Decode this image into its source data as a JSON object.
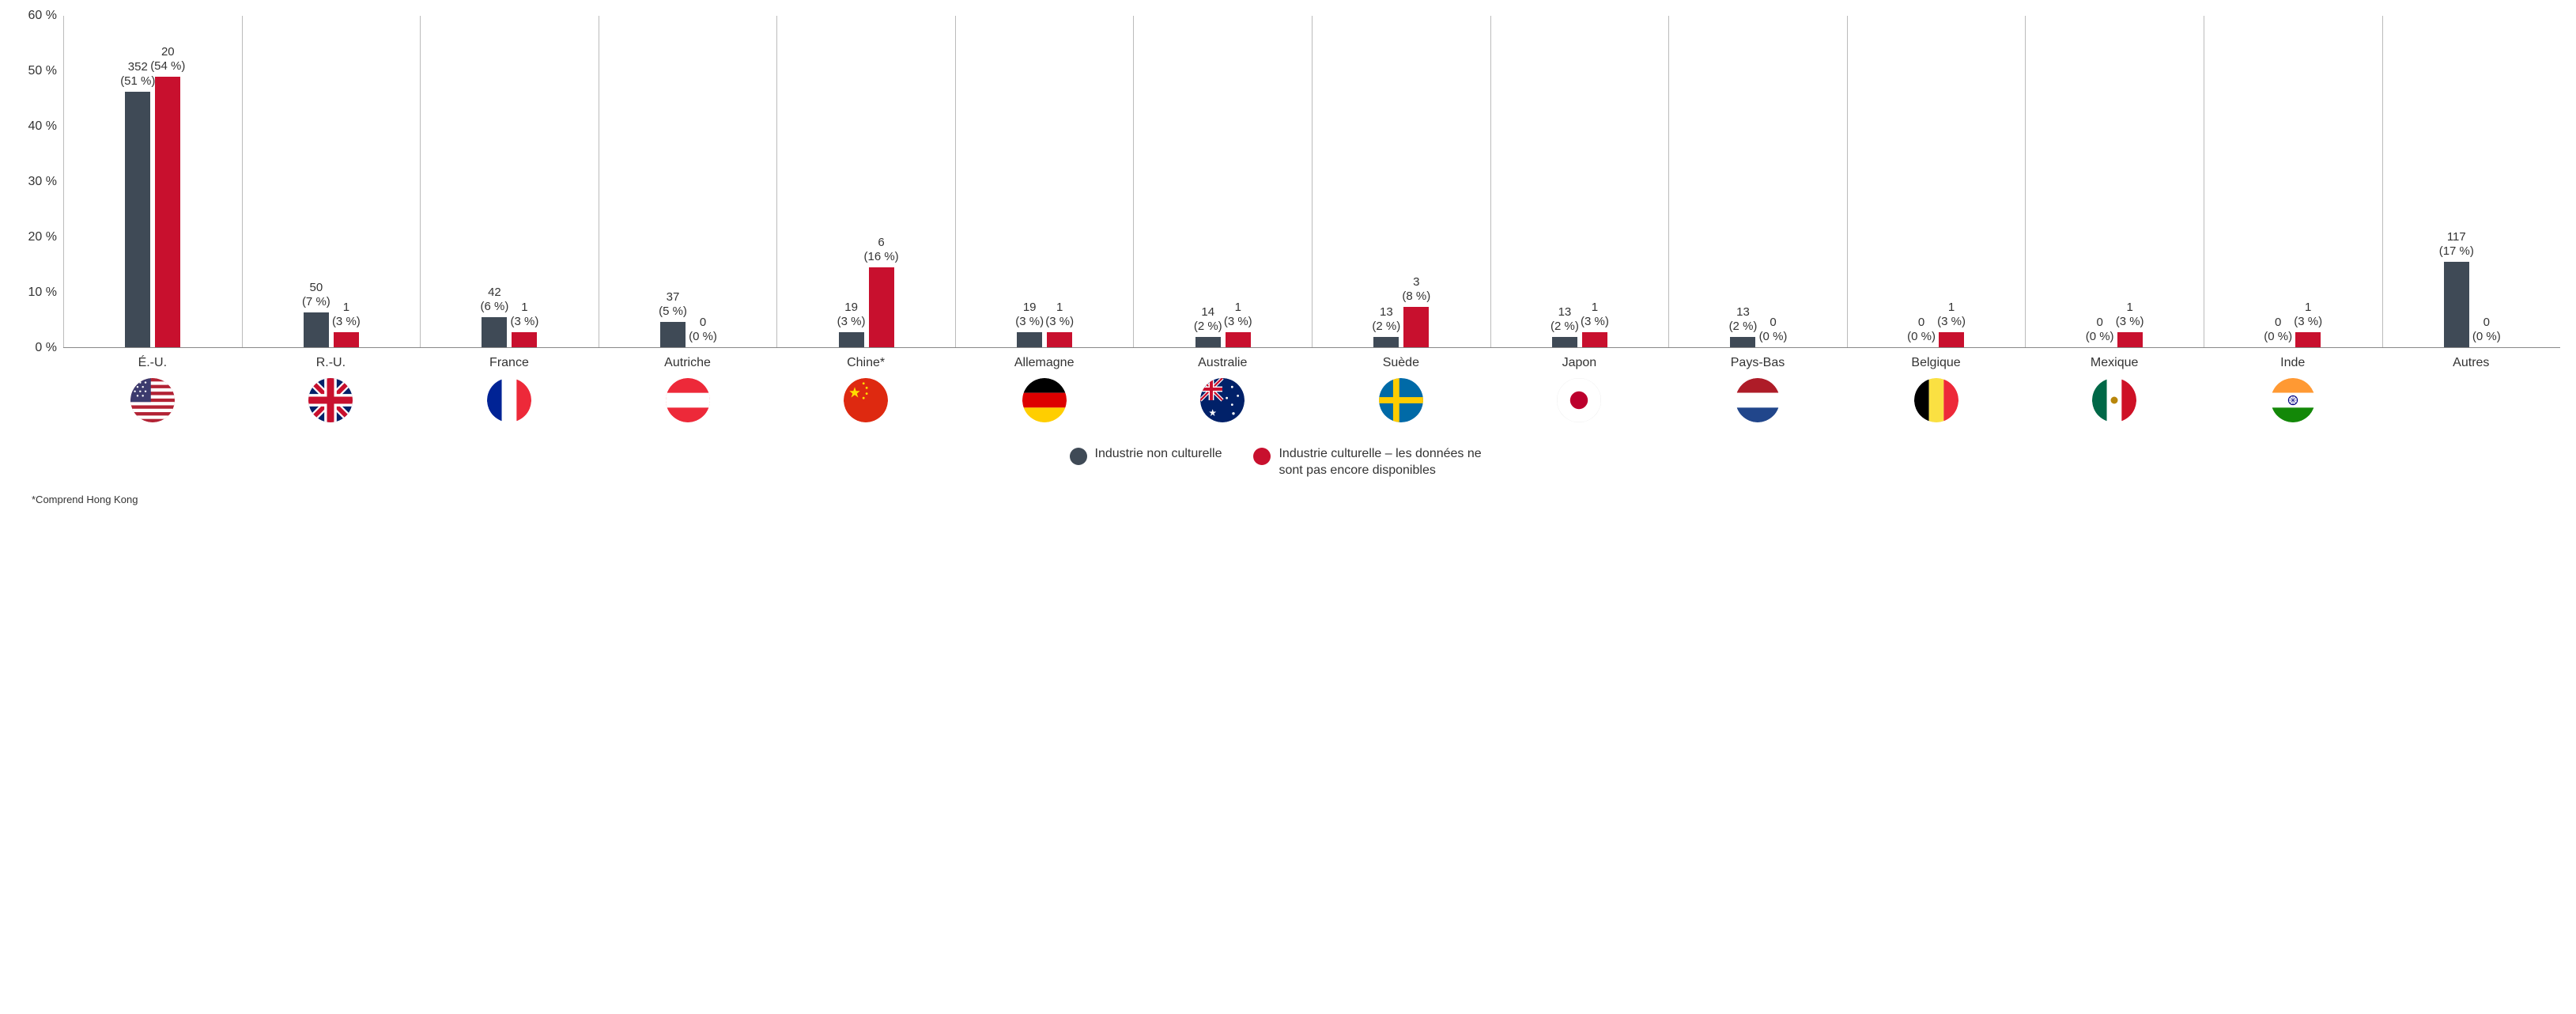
{
  "chart": {
    "type": "bar",
    "y_axis": {
      "min": 0,
      "max": 60,
      "step": 10,
      "unit": " %",
      "ticks": [
        0,
        10,
        20,
        30,
        40,
        50,
        60
      ]
    },
    "series": [
      {
        "key": "noncultural",
        "color": "#3f4a56"
      },
      {
        "key": "cultural",
        "color": "#c8102e"
      }
    ],
    "categories": [
      {
        "label": "É.-U.",
        "flag": "us",
        "noncultural": {
          "count": 352,
          "pct": 51
        },
        "cultural": {
          "count": 20,
          "pct": 54
        }
      },
      {
        "label": "R.-U.",
        "flag": "uk",
        "noncultural": {
          "count": 50,
          "pct": 7
        },
        "cultural": {
          "count": 1,
          "pct": 3
        }
      },
      {
        "label": "France",
        "flag": "fr",
        "noncultural": {
          "count": 42,
          "pct": 6
        },
        "cultural": {
          "count": 1,
          "pct": 3
        }
      },
      {
        "label": "Autriche",
        "flag": "at",
        "noncultural": {
          "count": 37,
          "pct": 5
        },
        "cultural": {
          "count": 0,
          "pct": 0
        }
      },
      {
        "label": "Chine*",
        "flag": "cn",
        "noncultural": {
          "count": 19,
          "pct": 3
        },
        "cultural": {
          "count": 6,
          "pct": 16
        }
      },
      {
        "label": "Allemagne",
        "flag": "de",
        "noncultural": {
          "count": 19,
          "pct": 3
        },
        "cultural": {
          "count": 1,
          "pct": 3
        }
      },
      {
        "label": "Australie",
        "flag": "au",
        "noncultural": {
          "count": 14,
          "pct": 2
        },
        "cultural": {
          "count": 1,
          "pct": 3
        }
      },
      {
        "label": "Suède",
        "flag": "se",
        "noncultural": {
          "count": 13,
          "pct": 2
        },
        "cultural": {
          "count": 3,
          "pct": 8
        }
      },
      {
        "label": "Japon",
        "flag": "jp",
        "noncultural": {
          "count": 13,
          "pct": 2
        },
        "cultural": {
          "count": 1,
          "pct": 3
        }
      },
      {
        "label": "Pays-Bas",
        "flag": "nl",
        "noncultural": {
          "count": 13,
          "pct": 2
        },
        "cultural": {
          "count": 0,
          "pct": 0
        }
      },
      {
        "label": "Belgique",
        "flag": "be",
        "noncultural": {
          "count": 0,
          "pct": 0
        },
        "cultural": {
          "count": 1,
          "pct": 3
        }
      },
      {
        "label": "Mexique",
        "flag": "mx",
        "noncultural": {
          "count": 0,
          "pct": 0
        },
        "cultural": {
          "count": 1,
          "pct": 3
        }
      },
      {
        "label": "Inde",
        "flag": "in",
        "noncultural": {
          "count": 0,
          "pct": 0
        },
        "cultural": {
          "count": 1,
          "pct": 3
        }
      },
      {
        "label": "Autres",
        "flag": null,
        "noncultural": {
          "count": 117,
          "pct": 17
        },
        "cultural": {
          "count": 0,
          "pct": 0
        }
      }
    ],
    "legend": {
      "noncultural": "Industrie\nnon culturelle",
      "cultural": "Industrie culturelle – les données ne sont pas encore disponibles"
    },
    "footnote": "*Comprend Hong Kong",
    "colors": {
      "axis": "#888888",
      "grid": "#bbbbbb",
      "text": "#333333",
      "background": "#ffffff"
    },
    "label_fontsize": 15,
    "axis_fontsize": 16
  }
}
